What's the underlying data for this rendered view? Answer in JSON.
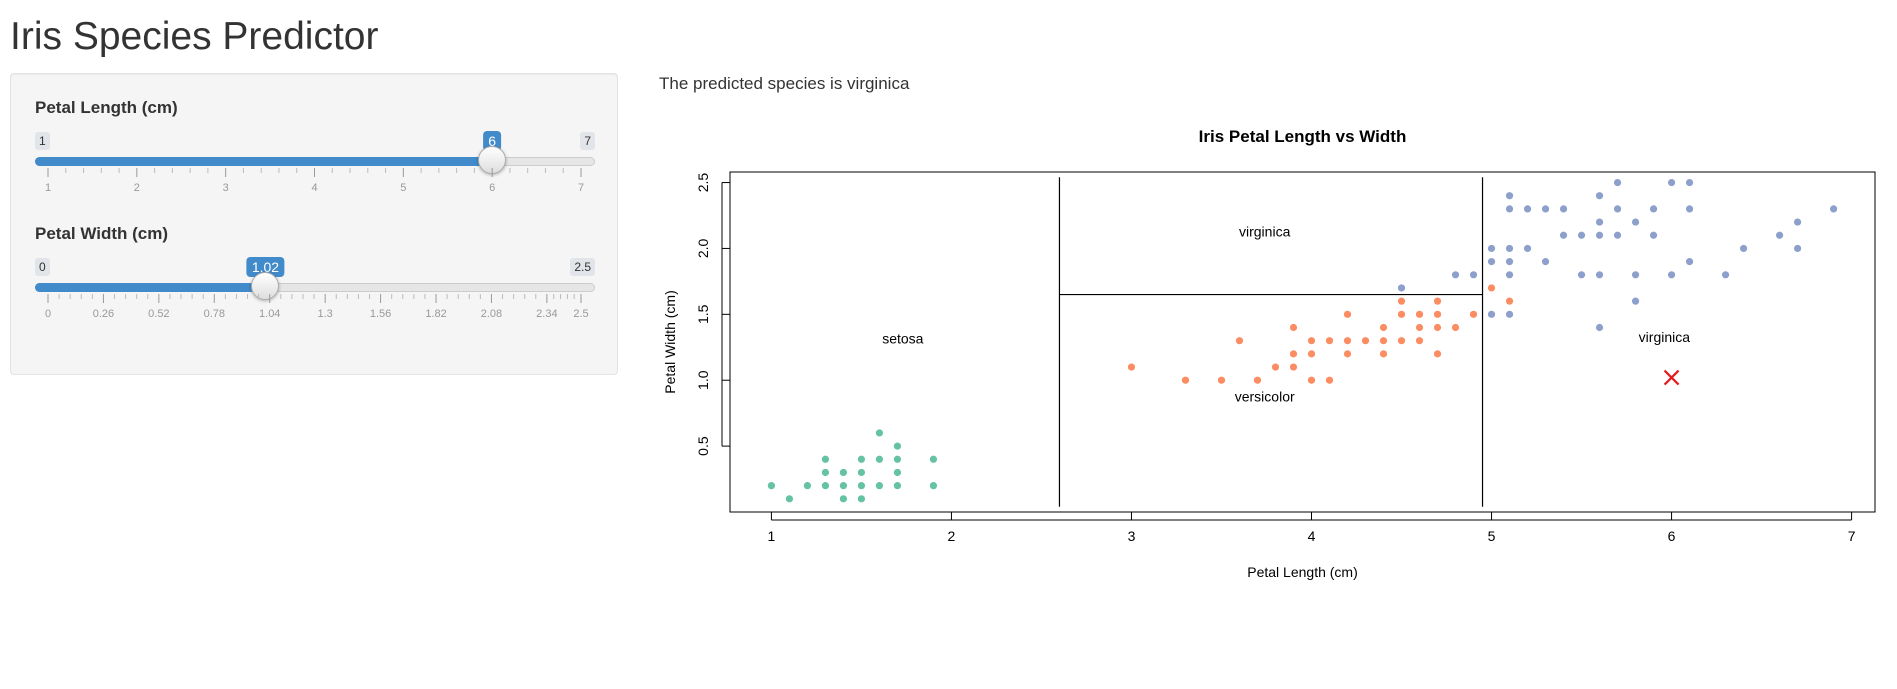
{
  "app": {
    "title": "Iris Species Predictor"
  },
  "sidebar": {
    "sliders": [
      {
        "label": "Petal Length (cm)",
        "min": 1,
        "max": 7,
        "value": 6,
        "value_label": "6",
        "min_label": "1",
        "max_label": "7",
        "ticks": [
          "1",
          "2",
          "3",
          "4",
          "5",
          "6",
          "7"
        ],
        "minor_per_major": 4
      },
      {
        "label": "Petal Width (cm)",
        "min": 0,
        "max": 2.5,
        "value": 1.02,
        "value_label": "1.02",
        "min_label": "0",
        "max_label": "2.5",
        "ticks": [
          "0",
          "0.26",
          "0.52",
          "0.78",
          "1.04",
          "1.3",
          "1.56",
          "1.82",
          "2.08",
          "2.34",
          "2.5"
        ],
        "minor_per_major": 4
      }
    ]
  },
  "main": {
    "prediction_text": "The predicted species is virginica"
  },
  "chart_data": {
    "type": "scatter",
    "title": "Iris Petal Length vs Width",
    "xlabel": "Petal Length (cm)",
    "ylabel": "Petal Width (cm)",
    "xlim": [
      0.77,
      7.13
    ],
    "ylim": [
      0.0,
      2.58
    ],
    "xticks": [
      1,
      2,
      3,
      4,
      5,
      6,
      7
    ],
    "yticks": [
      0.5,
      1.0,
      1.5,
      2.0,
      2.5
    ],
    "ytick_labels": [
      "0.5",
      "1.0",
      "1.5",
      "2.0",
      "2.5"
    ],
    "grid": false,
    "colors": {
      "setosa": "#66c2a5",
      "versicolor": "#fc8d62",
      "virginica": "#8da0cb",
      "marker": "#e41a1c",
      "line": "#000000"
    },
    "series": [
      {
        "name": "setosa",
        "points": [
          [
            1.0,
            0.2
          ],
          [
            1.1,
            0.1
          ],
          [
            1.2,
            0.2
          ],
          [
            1.3,
            0.2
          ],
          [
            1.3,
            0.3
          ],
          [
            1.3,
            0.4
          ],
          [
            1.4,
            0.1
          ],
          [
            1.4,
            0.2
          ],
          [
            1.4,
            0.3
          ],
          [
            1.5,
            0.1
          ],
          [
            1.5,
            0.2
          ],
          [
            1.5,
            0.3
          ],
          [
            1.5,
            0.4
          ],
          [
            1.6,
            0.2
          ],
          [
            1.6,
            0.4
          ],
          [
            1.6,
            0.6
          ],
          [
            1.7,
            0.2
          ],
          [
            1.7,
            0.3
          ],
          [
            1.7,
            0.4
          ],
          [
            1.7,
            0.5
          ],
          [
            1.9,
            0.2
          ],
          [
            1.9,
            0.4
          ]
        ]
      },
      {
        "name": "versicolor",
        "points": [
          [
            3.0,
            1.1
          ],
          [
            3.3,
            1.0
          ],
          [
            3.5,
            1.0
          ],
          [
            3.6,
            1.3
          ],
          [
            3.7,
            1.0
          ],
          [
            3.8,
            1.1
          ],
          [
            3.9,
            1.1
          ],
          [
            3.9,
            1.2
          ],
          [
            3.9,
            1.4
          ],
          [
            4.0,
            1.0
          ],
          [
            4.0,
            1.2
          ],
          [
            4.0,
            1.3
          ],
          [
            4.1,
            1.0
          ],
          [
            4.1,
            1.3
          ],
          [
            4.2,
            1.2
          ],
          [
            4.2,
            1.3
          ],
          [
            4.2,
            1.5
          ],
          [
            4.3,
            1.3
          ],
          [
            4.4,
            1.2
          ],
          [
            4.4,
            1.3
          ],
          [
            4.4,
            1.4
          ],
          [
            4.5,
            1.3
          ],
          [
            4.5,
            1.5
          ],
          [
            4.5,
            1.6
          ],
          [
            4.6,
            1.3
          ],
          [
            4.6,
            1.4
          ],
          [
            4.6,
            1.5
          ],
          [
            4.7,
            1.2
          ],
          [
            4.7,
            1.4
          ],
          [
            4.7,
            1.5
          ],
          [
            4.7,
            1.6
          ],
          [
            4.8,
            1.4
          ],
          [
            4.9,
            1.5
          ],
          [
            5.0,
            1.7
          ],
          [
            5.1,
            1.6
          ]
        ]
      },
      {
        "name": "virginica",
        "points": [
          [
            4.5,
            1.7
          ],
          [
            4.8,
            1.8
          ],
          [
            4.9,
            1.8
          ],
          [
            5.0,
            1.5
          ],
          [
            5.0,
            1.9
          ],
          [
            5.0,
            2.0
          ],
          [
            5.1,
            1.5
          ],
          [
            5.1,
            1.8
          ],
          [
            5.1,
            1.9
          ],
          [
            5.1,
            2.0
          ],
          [
            5.1,
            2.3
          ],
          [
            5.1,
            2.4
          ],
          [
            5.2,
            2.0
          ],
          [
            5.2,
            2.3
          ],
          [
            5.3,
            1.9
          ],
          [
            5.3,
            2.3
          ],
          [
            5.4,
            2.1
          ],
          [
            5.4,
            2.3
          ],
          [
            5.5,
            1.8
          ],
          [
            5.5,
            2.1
          ],
          [
            5.6,
            1.4
          ],
          [
            5.6,
            1.8
          ],
          [
            5.6,
            2.1
          ],
          [
            5.6,
            2.2
          ],
          [
            5.6,
            2.4
          ],
          [
            5.7,
            2.1
          ],
          [
            5.7,
            2.3
          ],
          [
            5.7,
            2.5
          ],
          [
            5.8,
            1.6
          ],
          [
            5.8,
            1.8
          ],
          [
            5.8,
            2.2
          ],
          [
            5.9,
            2.1
          ],
          [
            5.9,
            2.3
          ],
          [
            6.0,
            1.8
          ],
          [
            6.0,
            2.5
          ],
          [
            6.1,
            1.9
          ],
          [
            6.1,
            2.3
          ],
          [
            6.1,
            2.5
          ],
          [
            6.3,
            1.8
          ],
          [
            6.4,
            2.0
          ],
          [
            6.6,
            2.1
          ],
          [
            6.7,
            2.0
          ],
          [
            6.7,
            2.2
          ],
          [
            6.9,
            2.3
          ]
        ]
      }
    ],
    "prediction_point": {
      "x": 6.0,
      "y": 1.02,
      "marker": "x"
    },
    "region_labels": [
      {
        "text": "setosa",
        "x": 1.73,
        "y": 1.28
      },
      {
        "text": "virginica",
        "x": 3.74,
        "y": 2.09
      },
      {
        "text": "versicolor",
        "x": 3.74,
        "y": 0.84
      },
      {
        "text": "virginica",
        "x": 5.96,
        "y": 1.29
      }
    ],
    "split_lines": [
      {
        "x1": 2.6,
        "y1": 0.04,
        "x2": 2.6,
        "y2": 2.54
      },
      {
        "x1": 4.95,
        "y1": 0.04,
        "x2": 4.95,
        "y2": 2.54
      },
      {
        "x1": 2.6,
        "y1": 1.65,
        "x2": 4.95,
        "y2": 1.65
      }
    ]
  }
}
